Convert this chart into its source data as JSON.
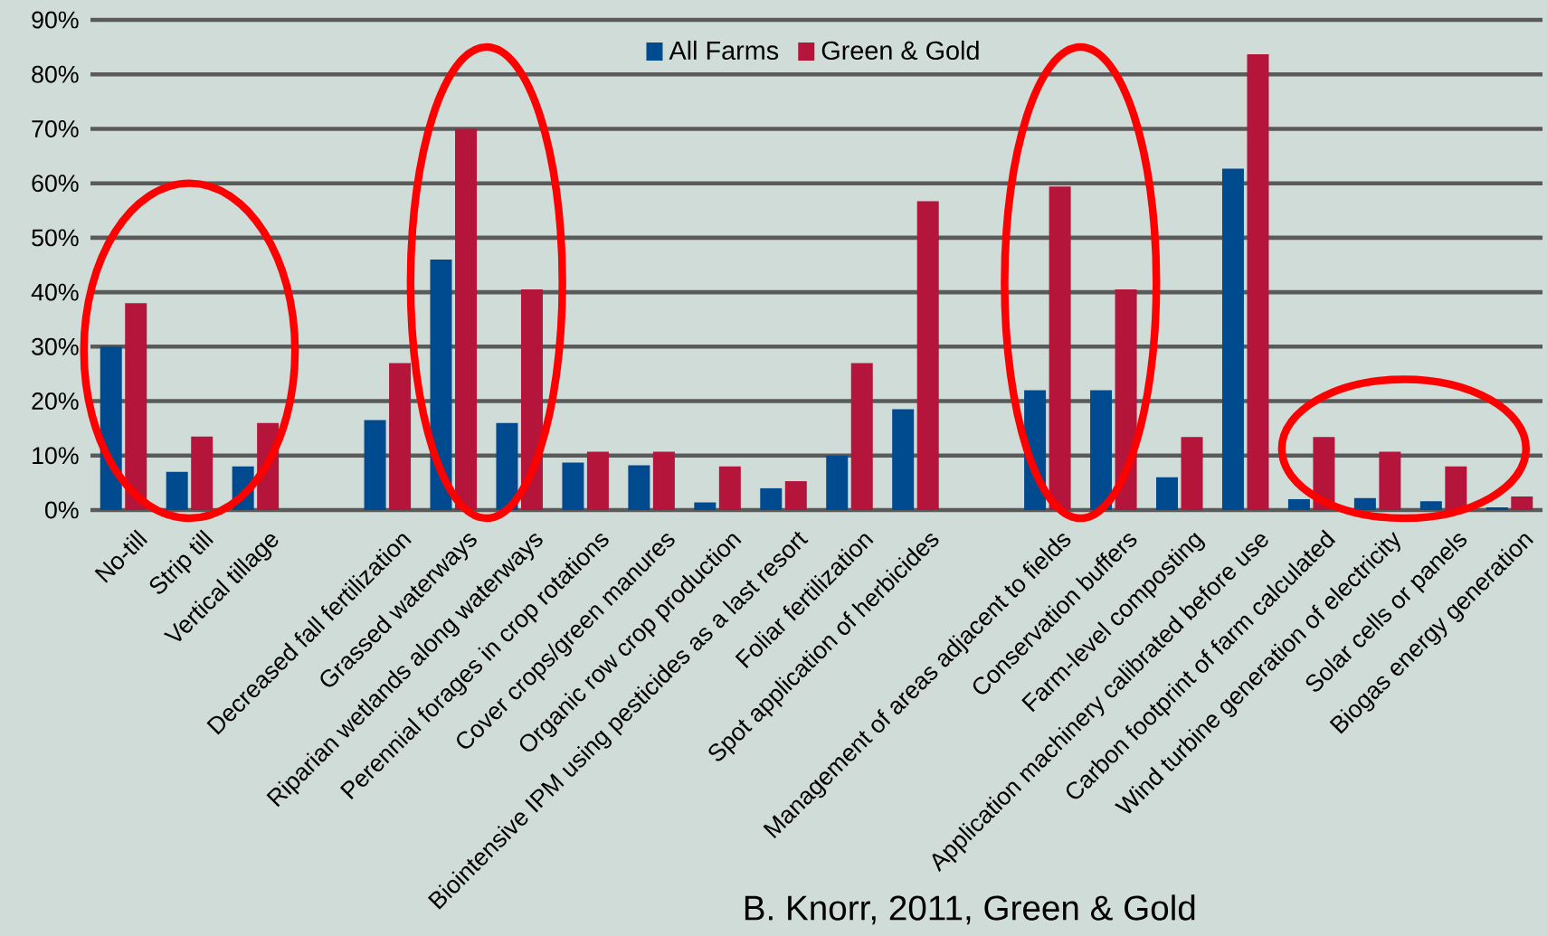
{
  "chart_data": {
    "type": "bar",
    "categories": [
      "No-till",
      "Strip till",
      "Vertical tillage",
      null,
      "Decreased fall fertilization",
      "Grassed waterways",
      "Riparian wetlands along waterways",
      "Perennial forages in crop rotations",
      "Cover crops/green manures",
      "Organic row crop production",
      "Biointensive IPM using pesticides as a last resort",
      "Foliar fertilization",
      "Spot application of herbicides",
      null,
      "Management of areas adjacent to fields",
      "Conservation buffers",
      "Farm-level composting",
      "Application machinery calibrated before use",
      "Carbon footprint of farm calculated",
      "Wind turbine generation of electricity",
      "Solar cells or panels",
      "Biogas energy generation"
    ],
    "series": [
      {
        "name": "All Farms",
        "color": "#004a8f",
        "values": [
          30,
          7,
          8,
          null,
          16.5,
          46,
          16,
          8.7,
          8.2,
          1.4,
          4,
          10,
          18.5,
          null,
          22,
          22,
          6,
          62.7,
          2,
          2.2,
          1.6,
          0.5
        ]
      },
      {
        "name": "Green & Gold",
        "color": "#b5153a",
        "values": [
          38,
          13.5,
          16,
          null,
          27,
          70,
          40.5,
          10.7,
          10.7,
          8,
          5.3,
          27,
          56.7,
          null,
          59.4,
          40.5,
          13.4,
          83.7,
          13.4,
          10.7,
          8,
          2.5
        ]
      }
    ],
    "ylim": [
      0,
      90
    ],
    "yticks": [
      {
        "value": 0,
        "label": "0%"
      },
      {
        "value": 10,
        "label": "10%"
      },
      {
        "value": 20,
        "label": "20%"
      },
      {
        "value": 30,
        "label": "30%"
      },
      {
        "value": 40,
        "label": "40%"
      },
      {
        "value": 50,
        "label": "50%"
      },
      {
        "value": 60,
        "label": "60%"
      },
      {
        "value": 70,
        "label": "70%"
      },
      {
        "value": 80,
        "label": "80%"
      },
      {
        "value": 90,
        "label": "90%"
      }
    ],
    "grid": "y",
    "legend": "top",
    "annotations": [
      "B. Knorr, 2011, Green & Gold"
    ]
  }
}
